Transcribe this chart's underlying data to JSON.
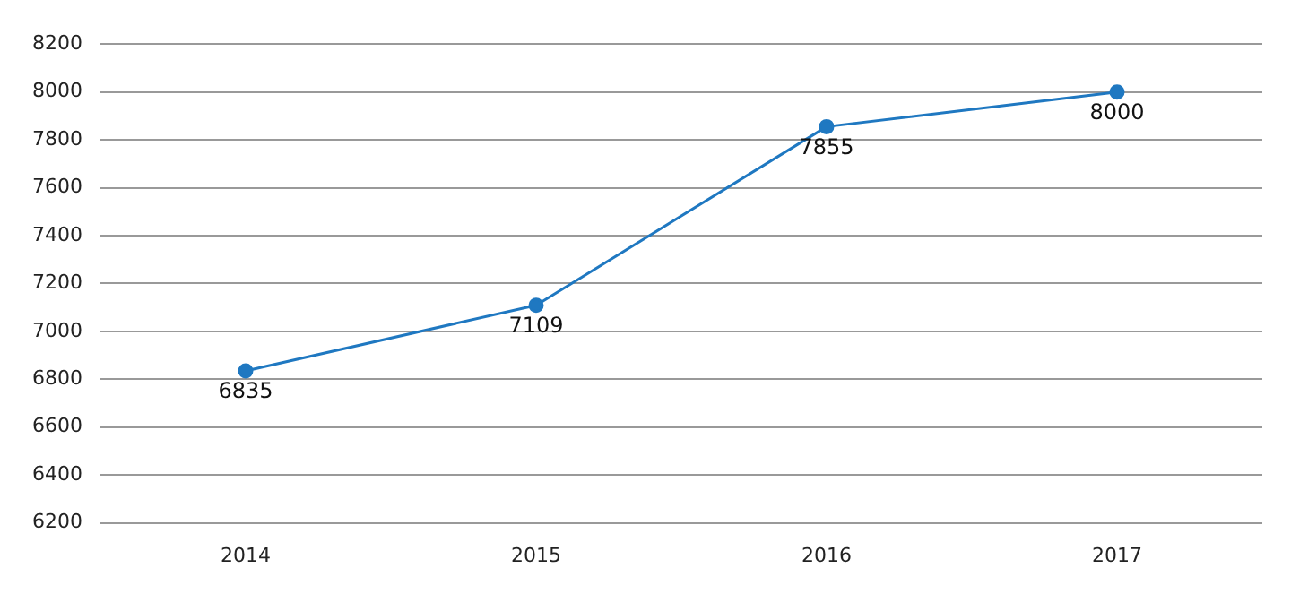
{
  "chart_data": {
    "type": "line",
    "categories": [
      "2014",
      "2015",
      "2016",
      "2017"
    ],
    "series": [
      {
        "color": "#1f78c1",
        "values": [
          6835,
          7109,
          7855,
          8000
        ]
      }
    ],
    "ylim": [
      6200,
      8200
    ],
    "yticks": [
      6200,
      6400,
      6600,
      6800,
      7000,
      7200,
      7400,
      7600,
      7800,
      8000,
      8200
    ],
    "grid": "y",
    "legend": false,
    "marker": "circle",
    "line_style": "solid",
    "data_labels": true
  }
}
